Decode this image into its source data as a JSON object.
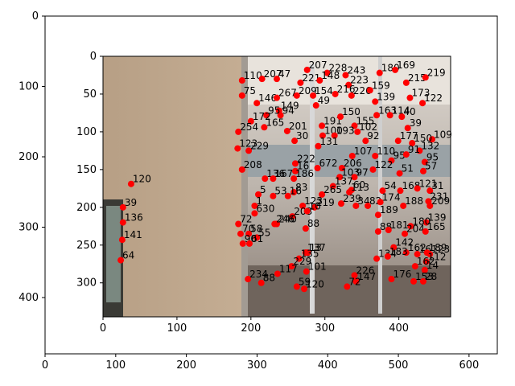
{
  "chart_data": [
    {
      "type": "scatter",
      "role": "outer-axes",
      "title": "",
      "xlabel": "",
      "ylabel": "",
      "xlim": [
        0,
        640
      ],
      "ylim": [
        480,
        0
      ],
      "x_ticks": [
        0,
        100,
        200,
        300,
        400,
        500,
        600
      ],
      "y_ticks": [
        0,
        100,
        200,
        300,
        400
      ],
      "grid": false
    },
    {
      "type": "scatter",
      "role": "inner-image-with-keypoints",
      "title": "",
      "xlabel": "",
      "ylabel": "",
      "xlim": [
        0,
        470
      ],
      "ylim": [
        345,
        0
      ],
      "x_ticks": [
        0,
        100,
        200,
        300,
        400
      ],
      "y_ticks": [
        0,
        50,
        100,
        150,
        200,
        250,
        300
      ],
      "grid": false,
      "marker_color": "#ff0000",
      "background": "photo of a train carriage interior with an open door",
      "points": [
        {
          "label": "120",
          "x": 38,
          "y": 169
        },
        {
          "label": "39",
          "x": 27,
          "y": 200
        },
        {
          "label": "136",
          "x": 27,
          "y": 220
        },
        {
          "label": "141",
          "x": 26,
          "y": 243
        },
        {
          "label": "64",
          "x": 24,
          "y": 270
        },
        {
          "label": "110",
          "x": 188,
          "y": 32
        },
        {
          "label": "75",
          "x": 188,
          "y": 52
        },
        {
          "label": "207",
          "x": 215,
          "y": 30
        },
        {
          "label": "47",
          "x": 235,
          "y": 30
        },
        {
          "label": "146",
          "x": 208,
          "y": 62
        },
        {
          "label": "267",
          "x": 235,
          "y": 55
        },
        {
          "label": "209",
          "x": 262,
          "y": 52
        },
        {
          "label": "207",
          "x": 276,
          "y": 18
        },
        {
          "label": "228",
          "x": 303,
          "y": 22
        },
        {
          "label": "221",
          "x": 267,
          "y": 35
        },
        {
          "label": "148",
          "x": 293,
          "y": 32
        },
        {
          "label": "243",
          "x": 328,
          "y": 25
        },
        {
          "label": "223",
          "x": 332,
          "y": 38
        },
        {
          "label": "154",
          "x": 284,
          "y": 52
        },
        {
          "label": "216",
          "x": 314,
          "y": 50
        },
        {
          "label": "226",
          "x": 336,
          "y": 52
        },
        {
          "label": "180",
          "x": 374,
          "y": 22
        },
        {
          "label": "169",
          "x": 395,
          "y": 18
        },
        {
          "label": "215",
          "x": 410,
          "y": 35
        },
        {
          "label": "219",
          "x": 436,
          "y": 28
        },
        {
          "label": "159",
          "x": 361,
          "y": 45
        },
        {
          "label": "173",
          "x": 415,
          "y": 55
        },
        {
          "label": "139",
          "x": 368,
          "y": 60
        },
        {
          "label": "122",
          "x": 432,
          "y": 62
        },
        {
          "label": "49",
          "x": 288,
          "y": 65
        },
        {
          "label": "149",
          "x": 238,
          "y": 72
        },
        {
          "label": "94",
          "x": 240,
          "y": 78
        },
        {
          "label": "95",
          "x": 221,
          "y": 78
        },
        {
          "label": "172",
          "x": 200,
          "y": 86
        },
        {
          "label": "165",
          "x": 218,
          "y": 94
        },
        {
          "label": "254",
          "x": 183,
          "y": 100
        },
        {
          "label": "201",
          "x": 249,
          "y": 99
        },
        {
          "label": "191",
          "x": 296,
          "y": 92
        },
        {
          "label": "150",
          "x": 321,
          "y": 80
        },
        {
          "label": "155",
          "x": 340,
          "y": 92
        },
        {
          "label": "102",
          "x": 344,
          "y": 100
        },
        {
          "label": "100",
          "x": 297,
          "y": 105
        },
        {
          "label": "193",
          "x": 313,
          "y": 105
        },
        {
          "label": "163",
          "x": 370,
          "y": 78
        },
        {
          "label": "114",
          "x": 388,
          "y": 78
        },
        {
          "label": "40",
          "x": 404,
          "y": 80
        },
        {
          "label": "39",
          "x": 412,
          "y": 95
        },
        {
          "label": "109",
          "x": 445,
          "y": 110
        },
        {
          "label": "30",
          "x": 259,
          "y": 112
        },
        {
          "label": "131",
          "x": 291,
          "y": 119
        },
        {
          "label": "92",
          "x": 355,
          "y": 112
        },
        {
          "label": "177",
          "x": 399,
          "y": 112
        },
        {
          "label": "150",
          "x": 418,
          "y": 115
        },
        {
          "label": "132",
          "x": 428,
          "y": 125
        },
        {
          "label": "229",
          "x": 197,
          "y": 125
        },
        {
          "label": "123",
          "x": 182,
          "y": 122
        },
        {
          "label": "107",
          "x": 337,
          "y": 132
        },
        {
          "label": "110",
          "x": 368,
          "y": 132
        },
        {
          "label": "95",
          "x": 390,
          "y": 138
        },
        {
          "label": "91",
          "x": 410,
          "y": 130
        },
        {
          "label": "95",
          "x": 435,
          "y": 140
        },
        {
          "label": "208",
          "x": 188,
          "y": 150
        },
        {
          "label": "222",
          "x": 260,
          "y": 142
        },
        {
          "label": "16",
          "x": 260,
          "y": 152
        },
        {
          "label": "672",
          "x": 290,
          "y": 148
        },
        {
          "label": "206",
          "x": 323,
          "y": 148
        },
        {
          "label": "122",
          "x": 365,
          "y": 150
        },
        {
          "label": "57",
          "x": 433,
          "y": 152
        },
        {
          "label": "136",
          "x": 219,
          "y": 162
        },
        {
          "label": "167",
          "x": 230,
          "y": 162
        },
        {
          "label": "186",
          "x": 258,
          "y": 162
        },
        {
          "label": "103",
          "x": 320,
          "y": 160
        },
        {
          "label": "97",
          "x": 340,
          "y": 160
        },
        {
          "label": "51",
          "x": 401,
          "y": 155
        },
        {
          "label": "137",
          "x": 311,
          "y": 172
        },
        {
          "label": "60",
          "x": 336,
          "y": 177
        },
        {
          "label": "113",
          "x": 333,
          "y": 180
        },
        {
          "label": "54",
          "x": 378,
          "y": 178
        },
        {
          "label": "168",
          "x": 402,
          "y": 178
        },
        {
          "label": "121",
          "x": 425,
          "y": 175
        },
        {
          "label": "31",
          "x": 442,
          "y": 178
        },
        {
          "label": "83",
          "x": 258,
          "y": 180
        },
        {
          "label": "265",
          "x": 296,
          "y": 183
        },
        {
          "label": "5",
          "x": 210,
          "y": 183
        },
        {
          "label": "53",
          "x": 230,
          "y": 185
        },
        {
          "label": "16",
          "x": 250,
          "y": 185
        },
        {
          "label": "239",
          "x": 322,
          "y": 195
        },
        {
          "label": "34",
          "x": 342,
          "y": 198
        },
        {
          "label": "82",
          "x": 358,
          "y": 198
        },
        {
          "label": "174",
          "x": 375,
          "y": 193
        },
        {
          "label": "188",
          "x": 406,
          "y": 198
        },
        {
          "label": "209",
          "x": 442,
          "y": 198
        },
        {
          "label": "231",
          "x": 440,
          "y": 192
        },
        {
          "label": "1",
          "x": 205,
          "y": 198
        },
        {
          "label": "630",
          "x": 205,
          "y": 208
        },
        {
          "label": "123",
          "x": 270,
          "y": 198
        },
        {
          "label": "203",
          "x": 256,
          "y": 212
        },
        {
          "label": "219",
          "x": 286,
          "y": 200
        },
        {
          "label": "10",
          "x": 276,
          "y": 205
        },
        {
          "label": "189",
          "x": 372,
          "y": 210
        },
        {
          "label": "72",
          "x": 183,
          "y": 222
        },
        {
          "label": "240",
          "x": 235,
          "y": 222
        },
        {
          "label": "246",
          "x": 232,
          "y": 222
        },
        {
          "label": "139",
          "x": 437,
          "y": 220
        },
        {
          "label": "180",
          "x": 416,
          "y": 225
        },
        {
          "label": "70",
          "x": 186,
          "y": 235
        },
        {
          "label": "58",
          "x": 197,
          "y": 235
        },
        {
          "label": "55",
          "x": 208,
          "y": 240
        },
        {
          "label": "88",
          "x": 274,
          "y": 228
        },
        {
          "label": "88",
          "x": 372,
          "y": 232
        },
        {
          "label": "181",
          "x": 386,
          "y": 230
        },
        {
          "label": "204",
          "x": 408,
          "y": 235
        },
        {
          "label": "165",
          "x": 436,
          "y": 232
        },
        {
          "label": "90",
          "x": 189,
          "y": 248
        },
        {
          "label": "61",
          "x": 198,
          "y": 248
        },
        {
          "label": "142",
          "x": 393,
          "y": 253
        },
        {
          "label": "162",
          "x": 410,
          "y": 260
        },
        {
          "label": "16",
          "x": 425,
          "y": 262
        },
        {
          "label": "189",
          "x": 438,
          "y": 260
        },
        {
          "label": "123",
          "x": 442,
          "y": 262
        },
        {
          "label": "137",
          "x": 274,
          "y": 260
        },
        {
          "label": "13",
          "x": 277,
          "y": 260
        },
        {
          "label": "135",
          "x": 265,
          "y": 268
        },
        {
          "label": "134",
          "x": 370,
          "y": 268
        },
        {
          "label": "183",
          "x": 385,
          "y": 265
        },
        {
          "label": "112",
          "x": 437,
          "y": 272
        },
        {
          "label": "162",
          "x": 422,
          "y": 278
        },
        {
          "label": "229",
          "x": 255,
          "y": 278
        },
        {
          "label": "101",
          "x": 275,
          "y": 285
        },
        {
          "label": "117",
          "x": 236,
          "y": 288
        },
        {
          "label": "14",
          "x": 435,
          "y": 283
        },
        {
          "label": "234",
          "x": 196,
          "y": 295
        },
        {
          "label": "88",
          "x": 214,
          "y": 300
        },
        {
          "label": "226",
          "x": 340,
          "y": 290
        },
        {
          "label": "147",
          "x": 342,
          "y": 298
        },
        {
          "label": "176",
          "x": 390,
          "y": 295
        },
        {
          "label": "153",
          "x": 420,
          "y": 298
        },
        {
          "label": "28",
          "x": 433,
          "y": 298
        },
        {
          "label": "59",
          "x": 262,
          "y": 305
        },
        {
          "label": "120",
          "x": 272,
          "y": 308
        },
        {
          "label": "72",
          "x": 330,
          "y": 305
        }
      ]
    }
  ]
}
